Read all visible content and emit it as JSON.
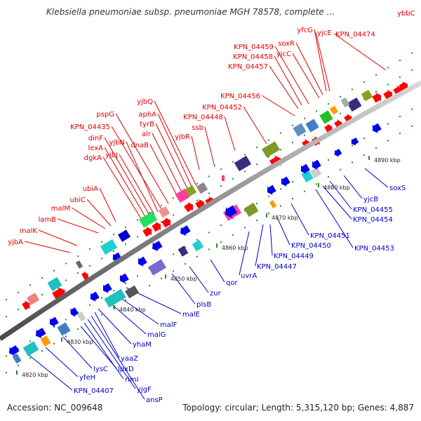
{
  "header": {
    "title": "Klebsiella pneumoniae subsp. pneumoniae MGH 78578, complete ...",
    "corner_label": "ybbC"
  },
  "footer": {
    "accession": "Accession: NC_009648",
    "summary": "Topology: circular; Length: 5,315,120 bp; Genes: 4,887"
  },
  "colors": {
    "forward_label": "#e00000",
    "reverse_label": "#0000cc",
    "forward_gene": "#ff0000",
    "reverse_gene": "#0000ee",
    "backbone": "#9a9a9a",
    "tick_mark": "#2a8a2a"
  },
  "scale_labels": [
    "4820 kbp",
    "4830 kbp",
    "4840 kbp",
    "4850 kbp",
    "4860 kbp",
    "4870 kbp",
    "4880 kbp",
    "4890 kbp"
  ],
  "forward_labels": [
    "yjbA",
    "malK",
    "lamB",
    "malM",
    "ubiC",
    "ubiA",
    "dgkA",
    "lexA",
    "dinF",
    "yjbJ",
    "yjbN",
    "KPN_04435",
    "pspG",
    "dnaB",
    "alr",
    "tyrB",
    "aphA",
    "yjbQ",
    "yjbR",
    "ssb",
    "KPN_04448",
    "KPN_04452",
    "KPN_04456",
    "KPN_04457",
    "KPN_04458",
    "KPN_04459",
    "yjcC",
    "soxR",
    "yfcG",
    "yjcE",
    "KPN_04474"
  ],
  "reverse_labels": [
    "KPN_04407",
    "yfeH",
    "lysC",
    "lpxD",
    "rimI",
    "yjgF",
    "ansP",
    "yaaZ",
    "yhaM",
    "malG",
    "malF",
    "malE",
    "plsB",
    "zur",
    "qor",
    "uvrA",
    "KPN_04447",
    "KPN_04449",
    "KPN_04450",
    "KPN_04451",
    "KPN_04453",
    "KPN_04454",
    "KPN_04455",
    "yjcB",
    "soxS"
  ]
}
